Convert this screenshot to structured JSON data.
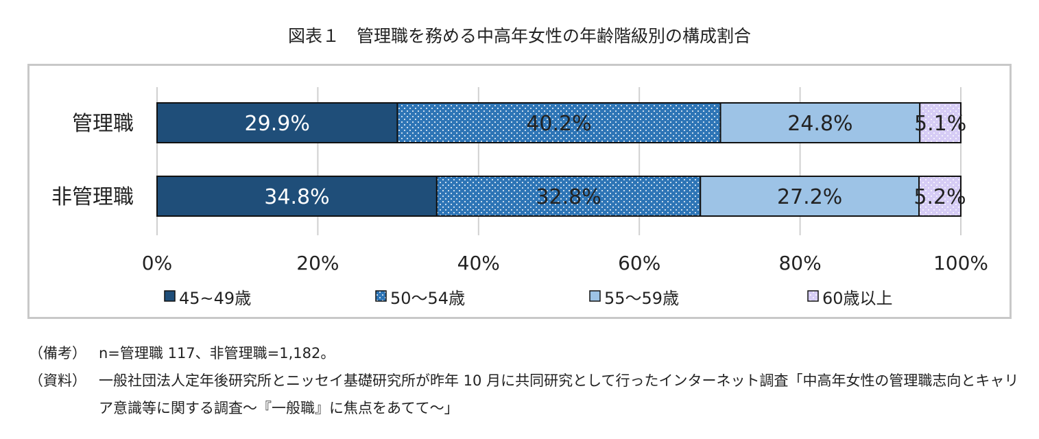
{
  "title": "図表１　管理職を務める中高年女性の年齢階級別の構成割合",
  "chart_data": {
    "type": "bar",
    "orientation": "horizontal",
    "stacked": true,
    "percent": true,
    "categories": [
      "管理職",
      "非管理職"
    ],
    "series": [
      {
        "name": "45~49歳",
        "values": [
          29.9,
          34.8
        ],
        "labels": [
          "29.9%",
          "34.8%"
        ],
        "color": "#1f4e79",
        "pattern": "solid"
      },
      {
        "name": "50～54歳",
        "values": [
          40.2,
          32.8
        ],
        "labels": [
          "40.2%",
          "32.8%"
        ],
        "color": "#2e75b6",
        "pattern": "dots"
      },
      {
        "name": "55～59歳",
        "values": [
          24.8,
          27.2
        ],
        "labels": [
          "24.8%",
          "27.2%"
        ],
        "color": "#9dc3e6",
        "pattern": "solid"
      },
      {
        "name": "60歳以上",
        "values": [
          5.1,
          5.2
        ],
        "labels": [
          "5.1%",
          "5.2%"
        ],
        "color": "#d6ccf5",
        "pattern": "dots"
      }
    ],
    "xlim": [
      0,
      100
    ],
    "xticks": [
      "0%",
      "20%",
      "40%",
      "60%",
      "80%",
      "100%"
    ],
    "grid": true,
    "legend_position": "bottom"
  },
  "notes": [
    {
      "label": "（備考）",
      "text": "n=管理職 117、非管理職=1,182。"
    },
    {
      "label": "（資料）",
      "text": "一般社団法人定年後研究所とニッセイ基礎研究所が昨年 10 月に共同研究として行ったインターネット調査「中高年女性の管理職志向とキャリア意識等に関する調査～『一般職』に焦点をあてて～」"
    }
  ]
}
